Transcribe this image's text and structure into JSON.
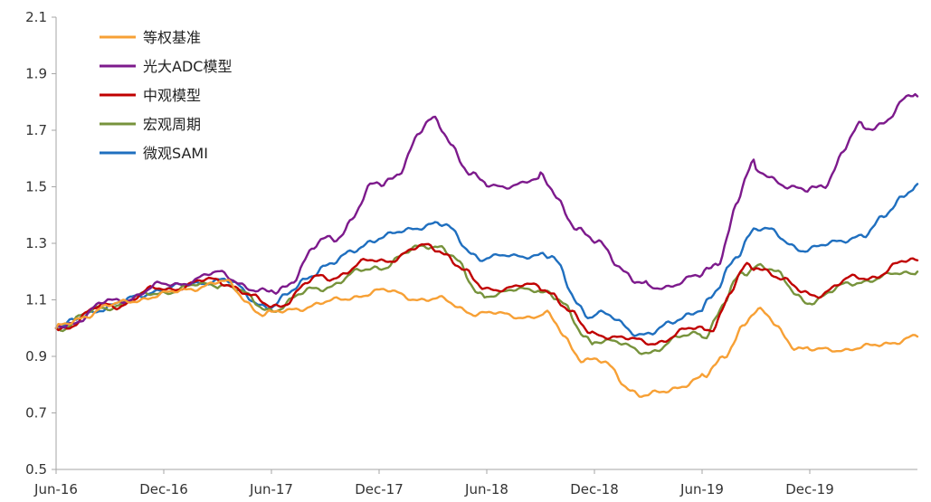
{
  "chart_data": {
    "type": "line",
    "title": "",
    "xlabel": "",
    "ylabel": "",
    "ylim": [
      0.5,
      2.1
    ],
    "yticks": [
      "0.5",
      "0.7",
      "0.9",
      "1.1",
      "1.3",
      "1.5",
      "1.7",
      "1.9",
      "2.1"
    ],
    "xticks": [
      "Jun-16",
      "Dec-16",
      "Jun-17",
      "Dec-17",
      "Jun-18",
      "Dec-18",
      "Jun-19",
      "Dec-19"
    ],
    "x_months": [
      0,
      3,
      6,
      9,
      12,
      15,
      18,
      21,
      24,
      27,
      30,
      33,
      36,
      39,
      42,
      45,
      48
    ],
    "grid": false,
    "legend": "top-left",
    "series": [
      {
        "name": "等权基准",
        "color": "#f7a035",
        "values": [
          1.0,
          1.08,
          1.12,
          1.16,
          1.05,
          1.09,
          1.13,
          1.1,
          1.05,
          1.04,
          0.88,
          0.76,
          0.82,
          1.05,
          0.92,
          0.93,
          0.97
        ]
      },
      {
        "name": "光大ADC模型",
        "color": "#7d1a8c",
        "values": [
          1.0,
          1.09,
          1.15,
          1.19,
          1.12,
          1.3,
          1.5,
          1.72,
          1.5,
          1.52,
          1.3,
          1.14,
          1.18,
          1.55,
          1.48,
          1.7,
          1.82
        ]
      },
      {
        "name": "中观模型",
        "color": "#c00000",
        "values": [
          1.0,
          1.08,
          1.14,
          1.17,
          1.08,
          1.18,
          1.24,
          1.29,
          1.14,
          1.15,
          0.98,
          0.95,
          1.0,
          1.22,
          1.12,
          1.18,
          1.24
        ]
      },
      {
        "name": "宏观周期",
        "color": "#77933c",
        "values": [
          1.0,
          1.08,
          1.13,
          1.16,
          1.07,
          1.15,
          1.22,
          1.3,
          1.12,
          1.14,
          0.96,
          0.92,
          0.99,
          1.23,
          1.1,
          1.17,
          1.2
        ]
      },
      {
        "name": "微观SAMI",
        "color": "#1f6fbf",
        "values": [
          1.0,
          1.08,
          1.14,
          1.17,
          1.08,
          1.22,
          1.32,
          1.37,
          1.25,
          1.26,
          1.05,
          0.98,
          1.07,
          1.35,
          1.28,
          1.33,
          1.51
        ]
      }
    ]
  }
}
